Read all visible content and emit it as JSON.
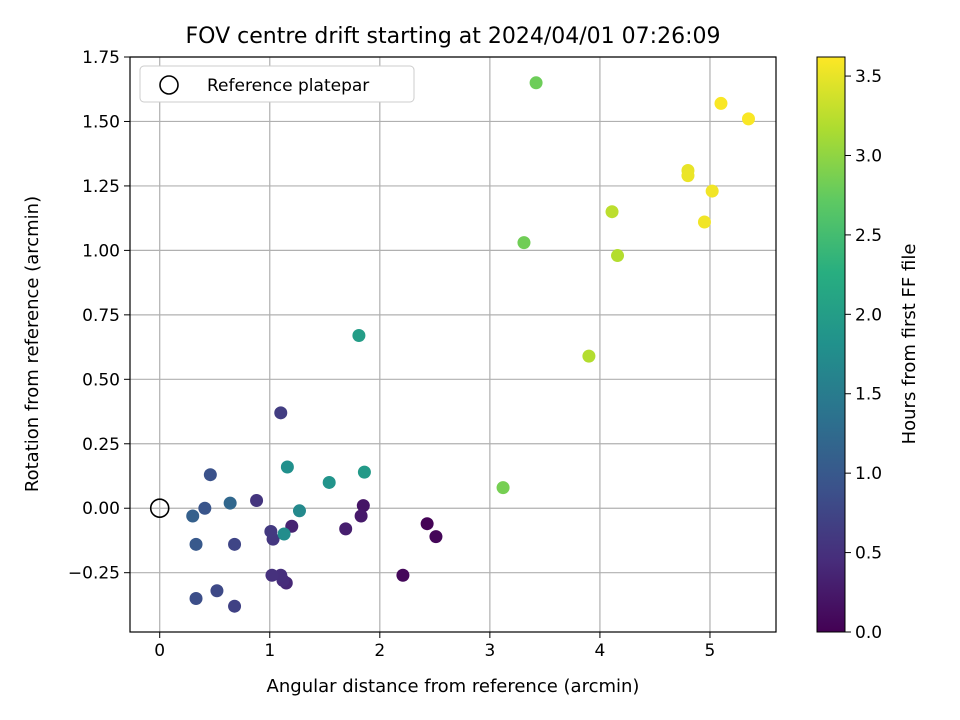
{
  "chart_data": {
    "type": "scatter",
    "title": "FOV centre drift starting at 2024/04/01 07:26:09",
    "xlabel": "Angular distance from reference (arcmin)",
    "ylabel": "Rotation from reference (arcmin)",
    "xlim": [
      -0.27,
      5.6
    ],
    "ylim": [
      -0.48,
      1.75
    ],
    "xticks": [
      0,
      1,
      2,
      3,
      4,
      5
    ],
    "xtick_labels": [
      "0",
      "1",
      "2",
      "3",
      "4",
      "5"
    ],
    "yticks": [
      -0.25,
      0.0,
      0.25,
      0.5,
      0.75,
      1.0,
      1.25,
      1.5,
      1.75
    ],
    "ytick_labels": [
      "−0.25",
      "0.00",
      "0.25",
      "0.50",
      "0.75",
      "1.00",
      "1.25",
      "1.50",
      "1.75"
    ],
    "grid": true,
    "legend": {
      "placement": "top-left",
      "entries": [
        {
          "label": "Reference platepar",
          "marker": "open-circle"
        }
      ]
    },
    "reference_point": {
      "x": 0,
      "y": 0
    },
    "colorbar": {
      "label": "Hours from first FF file",
      "colormap": "viridis",
      "range": [
        0,
        3.62
      ],
      "ticks": [
        0.0,
        0.5,
        1.0,
        1.5,
        2.0,
        2.5,
        3.0,
        3.5
      ],
      "tick_labels": [
        "0.0",
        "0.5",
        "1.0",
        "1.5",
        "2.0",
        "2.5",
        "3.0",
        "3.5"
      ]
    },
    "points": [
      {
        "x": 2.43,
        "y": -0.06,
        "c": 0.02
      },
      {
        "x": 2.51,
        "y": -0.11,
        "c": 0.05
      },
      {
        "x": 2.21,
        "y": -0.26,
        "c": 0.07
      },
      {
        "x": 1.85,
        "y": 0.01,
        "c": 0.2
      },
      {
        "x": 1.83,
        "y": -0.03,
        "c": 0.25
      },
      {
        "x": 1.69,
        "y": -0.08,
        "c": 0.3
      },
      {
        "x": 1.2,
        "y": -0.07,
        "c": 0.35
      },
      {
        "x": 1.15,
        "y": -0.29,
        "c": 0.4
      },
      {
        "x": 1.12,
        "y": -0.28,
        "c": 0.45
      },
      {
        "x": 1.1,
        "y": -0.26,
        "c": 0.48
      },
      {
        "x": 1.02,
        "y": -0.26,
        "c": 0.5
      },
      {
        "x": 0.88,
        "y": 0.03,
        "c": 0.55
      },
      {
        "x": 1.03,
        "y": -0.12,
        "c": 0.58
      },
      {
        "x": 1.01,
        "y": -0.09,
        "c": 0.6
      },
      {
        "x": 1.1,
        "y": 0.37,
        "c": 0.65
      },
      {
        "x": 0.68,
        "y": -0.38,
        "c": 0.7
      },
      {
        "x": 0.68,
        "y": -0.14,
        "c": 0.75
      },
      {
        "x": 0.52,
        "y": -0.32,
        "c": 0.8
      },
      {
        "x": 0.33,
        "y": -0.35,
        "c": 0.85
      },
      {
        "x": 0.46,
        "y": 0.13,
        "c": 0.9
      },
      {
        "x": 0.41,
        "y": 0.0,
        "c": 0.95
      },
      {
        "x": 0.33,
        "y": -0.14,
        "c": 1.0
      },
      {
        "x": 0.3,
        "y": -0.03,
        "c": 1.1
      },
      {
        "x": 0.64,
        "y": 0.02,
        "c": 1.2
      },
      {
        "x": 1.27,
        "y": -0.01,
        "c": 1.7
      },
      {
        "x": 1.13,
        "y": -0.1,
        "c": 1.75
      },
      {
        "x": 1.16,
        "y": 0.16,
        "c": 1.8
      },
      {
        "x": 1.54,
        "y": 0.1,
        "c": 1.85
      },
      {
        "x": 1.86,
        "y": 0.14,
        "c": 1.95
      },
      {
        "x": 1.81,
        "y": 0.67,
        "c": 2.0
      },
      {
        "x": 3.12,
        "y": 0.08,
        "c": 2.85
      },
      {
        "x": 3.31,
        "y": 1.03,
        "c": 2.82
      },
      {
        "x": 3.42,
        "y": 1.65,
        "c": 2.8
      },
      {
        "x": 3.9,
        "y": 0.59,
        "c": 3.2
      },
      {
        "x": 4.11,
        "y": 1.15,
        "c": 3.25
      },
      {
        "x": 4.16,
        "y": 0.98,
        "c": 3.2
      },
      {
        "x": 4.8,
        "y": 1.31,
        "c": 3.5
      },
      {
        "x": 4.8,
        "y": 1.29,
        "c": 3.52
      },
      {
        "x": 4.95,
        "y": 1.11,
        "c": 3.55
      },
      {
        "x": 5.02,
        "y": 1.23,
        "c": 3.55
      },
      {
        "x": 5.1,
        "y": 1.57,
        "c": 3.6
      },
      {
        "x": 5.35,
        "y": 1.51,
        "c": 3.6
      }
    ]
  }
}
